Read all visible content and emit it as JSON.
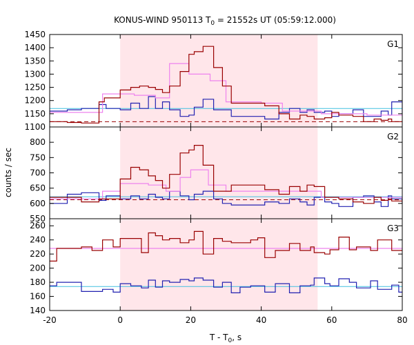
{
  "chart_data": {
    "type": "line",
    "title": "KONUS-WIND 950113 T",
    "title_sub": "0",
    "title_tail": " = 21552s UT (05:59:12.000)",
    "xlabel": "T - T",
    "xlabel_sub": "0",
    "xlabel_tail": ", s",
    "ylabel": "counts / sec",
    "xlim": [
      -20,
      80
    ],
    "x_ticks": [
      "-20",
      "0",
      "20",
      "40",
      "60",
      "80"
    ],
    "highlight_interval": [
      0,
      56
    ],
    "colors": {
      "red": "#990000",
      "pink": "#ee82ee",
      "blue": "#2020b0",
      "cyan": "#40c0e0",
      "band": "#ffe6ea"
    },
    "panels": [
      {
        "name": "G1",
        "ylim": [
          1100,
          1450
        ],
        "y_ticks": [
          1100,
          1150,
          1200,
          1250,
          1300,
          1350,
          1400,
          1450
        ],
        "y_tick_labels": [
          "1100",
          "1150",
          "1200",
          "1250",
          "1300",
          "1350",
          "1400",
          "1450"
        ],
        "background_red": 1120,
        "background_blue": 1170,
        "red_steps": {
          "edges": [
            -20,
            -15,
            -11,
            -6,
            -4.5,
            0,
            3,
            5.5,
            8,
            10,
            12,
            14,
            17,
            19.5,
            21,
            23.5,
            26.5,
            29,
            31.5,
            41,
            45,
            48,
            51,
            53,
            55,
            58,
            60,
            62,
            66,
            69,
            72,
            74,
            76,
            77,
            80
          ],
          "values": [
            1120,
            1117,
            1115,
            1195,
            1210,
            1240,
            1250,
            1255,
            1250,
            1242,
            1230,
            1255,
            1310,
            1375,
            1385,
            1405,
            1325,
            1255,
            1190,
            1180,
            1150,
            1130,
            1145,
            1140,
            1130,
            1135,
            1155,
            1145,
            1140,
            1120,
            1130,
            1125,
            1130,
            1120
          ]
        },
        "pink_steps": {
          "edges": [
            -20,
            -5,
            0,
            4,
            10,
            14,
            19.5,
            25.5,
            30,
            40,
            46,
            57,
            70,
            80
          ],
          "values": [
            1155,
            1225,
            1225,
            1220,
            1210,
            1340,
            1300,
            1275,
            1195,
            1190,
            1160,
            1150,
            1145,
            1140
          ]
        },
        "blue_steps": {
          "edges": [
            -20,
            -15,
            -11,
            -6,
            -4,
            0,
            3,
            5.5,
            8,
            10,
            12,
            14,
            17,
            19.5,
            21,
            23.5,
            26.5,
            29,
            31.5,
            41,
            45,
            48,
            51,
            53,
            55,
            58,
            60,
            62,
            66,
            69,
            72,
            74,
            76,
            77,
            80
          ],
          "values": [
            1160,
            1165,
            1170,
            1185,
            1170,
            1165,
            1190,
            1170,
            1215,
            1170,
            1195,
            1165,
            1140,
            1145,
            1175,
            1205,
            1165,
            1165,
            1140,
            1130,
            1155,
            1170,
            1155,
            1165,
            1155,
            1160,
            1140,
            1150,
            1165,
            1140,
            1140,
            1160,
            1145,
            1195,
            1150
          ]
        }
      },
      {
        "name": "G2",
        "ylim": [
          550,
          850
        ],
        "y_ticks": [
          550,
          600,
          650,
          700,
          750,
          800
        ],
        "y_tick_labels": [
          "550",
          "600",
          "650",
          "700",
          "750",
          "800"
        ],
        "background_red": 612,
        "background_blue": 622,
        "red_steps": {
          "edges": [
            -20,
            -15,
            -11,
            -6,
            -4.5,
            0,
            3,
            5.5,
            8,
            10,
            12,
            14,
            17,
            19.5,
            21,
            23.5,
            26.5,
            29,
            31.5,
            41,
            45,
            48,
            51,
            53,
            55,
            58,
            60,
            62,
            66,
            69,
            72,
            74,
            76,
            77,
            80
          ],
          "values": [
            620,
            620,
            605,
            615,
            615,
            680,
            718,
            710,
            690,
            675,
            650,
            695,
            765,
            775,
            790,
            725,
            640,
            640,
            660,
            645,
            630,
            655,
            640,
            660,
            655,
            620,
            620,
            615,
            605,
            600,
            620,
            610,
            615,
            608,
            600
          ]
        },
        "pink_steps": {
          "edges": [
            -20,
            -5,
            0,
            8,
            13,
            17,
            20,
            25,
            30,
            40,
            57,
            70,
            80
          ],
          "values": [
            615,
            640,
            665,
            660,
            640,
            685,
            710,
            660,
            640,
            640,
            620,
            620,
            610
          ]
        },
        "blue_steps": {
          "edges": [
            -20,
            -15,
            -11,
            -6,
            -4,
            0,
            3,
            5.5,
            8,
            10,
            12,
            14,
            17,
            19.5,
            21,
            23.5,
            26.5,
            29,
            31.5,
            41,
            45,
            48,
            51,
            53,
            55,
            58,
            60,
            62,
            66,
            69,
            72,
            74,
            76,
            77,
            80
          ],
          "values": [
            600,
            630,
            635,
            610,
            625,
            615,
            625,
            615,
            630,
            620,
            615,
            640,
            625,
            612,
            630,
            640,
            615,
            600,
            595,
            605,
            600,
            615,
            605,
            595,
            620,
            605,
            600,
            590,
            620,
            625,
            605,
            590,
            625,
            615,
            600
          ]
        }
      },
      {
        "name": "G3",
        "ylim": [
          140,
          270
        ],
        "y_ticks": [
          140,
          160,
          180,
          200,
          220,
          240,
          260
        ],
        "y_tick_labels": [
          "140",
          "160",
          "180",
          "200",
          "220",
          "240",
          "260"
        ],
        "background_red": 228,
        "background_blue": 174,
        "red_steps": {
          "edges": [
            -20,
            -18,
            -11,
            -8,
            -5,
            -2,
            0,
            3,
            6,
            8,
            10,
            12,
            14,
            17,
            19.5,
            21,
            23.5,
            26.5,
            29,
            31.5,
            37,
            39,
            41,
            44,
            48,
            51,
            54,
            55,
            58,
            59.5,
            62,
            65,
            67,
            71,
            73,
            77,
            79,
            80
          ],
          "values": [
            210,
            228,
            230,
            225,
            240,
            230,
            242,
            242,
            222,
            250,
            246,
            240,
            242,
            236,
            240,
            252,
            220,
            242,
            238,
            236,
            240,
            243,
            215,
            225,
            235,
            225,
            230,
            222,
            220,
            226,
            244,
            226,
            230,
            225,
            240,
            225,
            225,
            225
          ]
        },
        "pink_steps": {
          "edges": [
            -20,
            0,
            80
          ],
          "values": [
            228,
            228,
            228
          ]
        },
        "blue_steps": {
          "edges": [
            -20,
            -18,
            -11,
            -8,
            -5,
            -2,
            0,
            3,
            6,
            8,
            10,
            12,
            14,
            17,
            19.5,
            21,
            23.5,
            26.5,
            29,
            31.5,
            34,
            37,
            41,
            44,
            48,
            51,
            54,
            55,
            58,
            59.5,
            62,
            65,
            67,
            71,
            73,
            77,
            79,
            80
          ],
          "values": [
            175,
            180,
            167,
            167,
            170,
            166,
            178,
            175,
            172,
            183,
            173,
            182,
            180,
            184,
            182,
            186,
            183,
            173,
            180,
            165,
            173,
            175,
            166,
            178,
            165,
            175,
            176,
            186,
            178,
            175,
            185,
            180,
            172,
            182,
            170,
            176,
            166,
            166
          ]
        }
      }
    ]
  }
}
